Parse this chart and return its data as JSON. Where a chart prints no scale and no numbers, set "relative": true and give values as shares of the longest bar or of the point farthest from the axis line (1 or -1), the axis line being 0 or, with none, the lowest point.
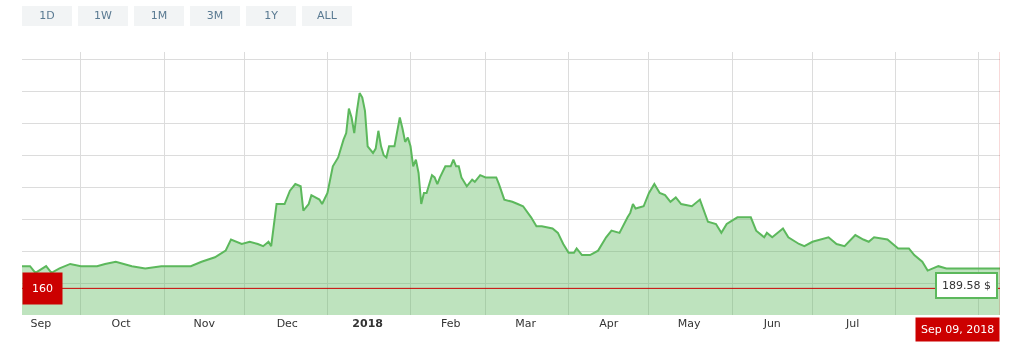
{
  "chart_data": {
    "type": "area",
    "relative": true,
    "grid": true,
    "legend": false,
    "marker": "none",
    "line_style": "solid",
    "annotations": [
      "1D",
      "1W",
      "1M",
      "3M",
      "1Y",
      "ALL",
      "160",
      "189.58 $"
    ],
    "xlim": [
      "2017-09-09",
      "2018-09-09"
    ],
    "xticks": [
      {
        "value": "2017-09-16",
        "label": "Sep"
      },
      {
        "value": "2017-10-01",
        "label": null
      },
      {
        "value": "2017-10-16",
        "label": "Oct"
      },
      {
        "value": "2017-11-01",
        "label": null
      },
      {
        "value": "2017-11-16",
        "label": "Nov"
      },
      {
        "value": "2017-12-01",
        "label": null
      },
      {
        "value": "2017-12-17",
        "label": "Dec"
      },
      {
        "value": "2018-01-01",
        "label": null
      },
      {
        "value": "2018-01-16",
        "label": "2018"
      },
      {
        "value": "2018-02-01",
        "label": null
      },
      {
        "value": "2018-02-16",
        "label": "Feb"
      },
      {
        "value": "2018-03-01",
        "label": null
      },
      {
        "value": "2018-03-16",
        "label": "Mar"
      },
      {
        "value": "2018-04-01",
        "label": null
      },
      {
        "value": "2018-04-16",
        "label": "Apr"
      },
      {
        "value": "2018-05-01",
        "label": null
      },
      {
        "value": "2018-05-16",
        "label": "May"
      },
      {
        "value": "2018-06-01",
        "label": null
      },
      {
        "value": "2018-06-16",
        "label": "Jun"
      },
      {
        "value": "2018-07-01",
        "label": null
      },
      {
        "value": "2018-07-16",
        "label": "Jul"
      },
      {
        "value": "2018-08-01",
        "label": null
      },
      {
        "value": "2018-09-01",
        "label": null
      }
    ],
    "ref_lines": [
      {
        "axis": "y",
        "value": 0.12,
        "color": "#cc0000"
      },
      {
        "axis": "x",
        "value": "2018-09-09",
        "label": "Sep 09, 2018",
        "color": "#cc0000"
      }
    ],
    "x": [
      "2017-09-09",
      "2017-09-12",
      "2017-09-14",
      "2017-09-18",
      "2017-09-20",
      "2017-09-23",
      "2017-09-27",
      "2017-10-01",
      "2017-10-07",
      "2017-10-10",
      "2017-10-14",
      "2017-10-20",
      "2017-10-25",
      "2017-10-31",
      "2017-11-05",
      "2017-11-11",
      "2017-11-15",
      "2017-11-20",
      "2017-11-24",
      "2017-11-26",
      "2017-11-30",
      "2017-12-03",
      "2017-12-06",
      "2017-12-08",
      "2017-12-10",
      "2017-12-11",
      "2017-12-13",
      "2017-12-15",
      "2017-12-16",
      "2017-12-18",
      "2017-12-20",
      "2017-12-22",
      "2017-12-23",
      "2017-12-25",
      "2017-12-26",
      "2017-12-29",
      "2017-12-30",
      "2018-01-01",
      "2018-01-03",
      "2018-01-05",
      "2018-01-07",
      "2018-01-08",
      "2018-01-09",
      "2018-01-10",
      "2018-01-11",
      "2018-01-12",
      "2018-01-13",
      "2018-01-14",
      "2018-01-15",
      "2018-01-16",
      "2018-01-18",
      "2018-01-19",
      "2018-01-20",
      "2018-01-21",
      "2018-01-22",
      "2018-01-23",
      "2018-01-24",
      "2018-01-26",
      "2018-01-28",
      "2018-01-29",
      "2018-01-30",
      "2018-01-31",
      "2018-02-01",
      "2018-02-02",
      "2018-02-03",
      "2018-02-04",
      "2018-02-05",
      "2018-02-06",
      "2018-02-07",
      "2018-02-09",
      "2018-02-10",
      "2018-02-11",
      "2018-02-12",
      "2018-02-14",
      "2018-02-16",
      "2018-02-17",
      "2018-02-18",
      "2018-02-19",
      "2018-02-20",
      "2018-02-22",
      "2018-02-24",
      "2018-02-25",
      "2018-02-27",
      "2018-03-01",
      "2018-03-03",
      "2018-03-05",
      "2018-03-06",
      "2018-03-08",
      "2018-03-11",
      "2018-03-13",
      "2018-03-15",
      "2018-03-18",
      "2018-03-20",
      "2018-03-22",
      "2018-03-26",
      "2018-03-28",
      "2018-03-30",
      "2018-04-01",
      "2018-04-03",
      "2018-04-04",
      "2018-04-06",
      "2018-04-09",
      "2018-04-12",
      "2018-04-15",
      "2018-04-17",
      "2018-04-20",
      "2018-04-23",
      "2018-04-24",
      "2018-04-25",
      "2018-04-26",
      "2018-04-29",
      "2018-05-01",
      "2018-05-03",
      "2018-05-05",
      "2018-05-07",
      "2018-05-09",
      "2018-05-11",
      "2018-05-13",
      "2018-05-17",
      "2018-05-20",
      "2018-05-23",
      "2018-05-26",
      "2018-05-28",
      "2018-05-30",
      "2018-06-03",
      "2018-06-05",
      "2018-06-08",
      "2018-06-10",
      "2018-06-13",
      "2018-06-14",
      "2018-06-16",
      "2018-06-20",
      "2018-06-22",
      "2018-06-26",
      "2018-06-28",
      "2018-07-01",
      "2018-07-07",
      "2018-07-10",
      "2018-07-13",
      "2018-07-17",
      "2018-07-20",
      "2018-07-22",
      "2018-07-24",
      "2018-07-29",
      "2018-07-31",
      "2018-08-02",
      "2018-08-06",
      "2018-08-08",
      "2018-08-11",
      "2018-08-13",
      "2018-08-17",
      "2018-08-20",
      "2018-08-27",
      "2018-09-01",
      "2018-09-05",
      "2018-09-09"
    ],
    "series": [
      {
        "color": "#5cb85c",
        "values": [
          0.22,
          0.22,
          0.19,
          0.22,
          0.19,
          0.21,
          0.23,
          0.22,
          0.22,
          0.23,
          0.24,
          0.22,
          0.21,
          0.22,
          0.22,
          0.22,
          0.24,
          0.26,
          0.29,
          0.34,
          0.32,
          0.33,
          0.32,
          0.31,
          0.33,
          0.31,
          0.5,
          0.5,
          0.5,
          0.56,
          0.59,
          0.58,
          0.47,
          0.5,
          0.54,
          0.52,
          0.5,
          0.55,
          0.67,
          0.71,
          0.79,
          0.82,
          0.93,
          0.89,
          0.82,
          0.92,
          1.0,
          0.98,
          0.92,
          0.76,
          0.73,
          0.75,
          0.83,
          0.76,
          0.72,
          0.71,
          0.76,
          0.76,
          0.89,
          0.84,
          0.78,
          0.8,
          0.76,
          0.67,
          0.7,
          0.64,
          0.5,
          0.55,
          0.55,
          0.63,
          0.62,
          0.59,
          0.62,
          0.67,
          0.67,
          0.7,
          0.67,
          0.67,
          0.62,
          0.58,
          0.61,
          0.6,
          0.63,
          0.62,
          0.62,
          0.62,
          0.59,
          0.52,
          0.51,
          0.5,
          0.49,
          0.44,
          0.4,
          0.4,
          0.39,
          0.37,
          0.32,
          0.28,
          0.28,
          0.3,
          0.27,
          0.27,
          0.29,
          0.35,
          0.38,
          0.37,
          0.44,
          0.46,
          0.5,
          0.48,
          0.49,
          0.55,
          0.59,
          0.55,
          0.54,
          0.51,
          0.53,
          0.5,
          0.49,
          0.52,
          0.42,
          0.41,
          0.37,
          0.41,
          0.44,
          0.44,
          0.44,
          0.38,
          0.35,
          0.37,
          0.35,
          0.39,
          0.35,
          0.32,
          0.31,
          0.33,
          0.35,
          0.32,
          0.31,
          0.36,
          0.34,
          0.33,
          0.35,
          0.34,
          0.32,
          0.3,
          0.3,
          0.27,
          0.24,
          0.2,
          0.22,
          0.21,
          0.21,
          0.21,
          0.21,
          0.21
        ]
      }
    ]
  }
}
